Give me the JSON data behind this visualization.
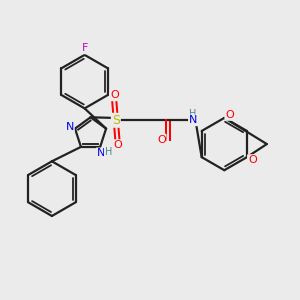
{
  "background_color": "#ebebeb",
  "atom_colors": {
    "F": "#cc00cc",
    "N": "#0000ee",
    "O": "#ff0000",
    "S": "#bbbb00",
    "C": "#111111",
    "H": "#4a8a8a"
  },
  "bond_color": "#222222",
  "bond_width": 1.6,
  "figsize": [
    3.0,
    3.0
  ],
  "dpi": 100
}
